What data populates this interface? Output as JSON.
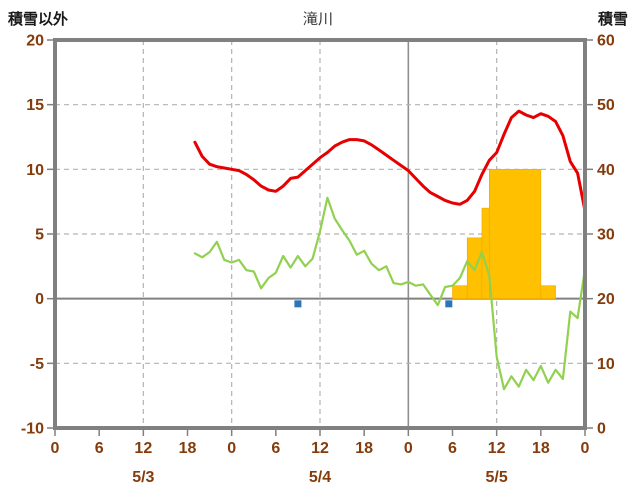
{
  "chart_data": {
    "type": "line",
    "title": "滝川",
    "left_axis_title": "積雪以外",
    "right_axis_title": "積雪",
    "left_axis": {
      "min": -10,
      "max": 20,
      "ticks": [
        20,
        15,
        10,
        5,
        0,
        -5,
        -10
      ]
    },
    "right_axis": {
      "min": 0,
      "max": 60,
      "ticks": [
        60,
        50,
        40,
        30,
        20,
        10,
        0
      ]
    },
    "x_axis": {
      "min": 0,
      "max": 72,
      "tick_interval": 6,
      "tick_labels": [
        "0",
        "6",
        "12",
        "18",
        "0",
        "6",
        "12",
        "18",
        "0",
        "6",
        "12",
        "18",
        "0"
      ],
      "date_labels": [
        {
          "label": "5/3",
          "hour": 12
        },
        {
          "label": "5/4",
          "hour": 36
        },
        {
          "label": "5/5",
          "hour": 60
        }
      ],
      "gridline_hours": [
        12,
        24,
        36,
        48,
        60
      ],
      "solid_gridline_hours": [
        48
      ]
    },
    "series": [
      {
        "name": "temperature-red-line",
        "color": "#e60000",
        "width": 3,
        "axis": "left",
        "points": [
          [
            19,
            12.1
          ],
          [
            20,
            11.0
          ],
          [
            21,
            10.4
          ],
          [
            22,
            10.2
          ],
          [
            23,
            10.1
          ],
          [
            24,
            10.0
          ],
          [
            25,
            9.9
          ],
          [
            26,
            9.6
          ],
          [
            27,
            9.2
          ],
          [
            28,
            8.7
          ],
          [
            29,
            8.4
          ],
          [
            30,
            8.3
          ],
          [
            31,
            8.7
          ],
          [
            32,
            9.3
          ],
          [
            33,
            9.4
          ],
          [
            34,
            9.9
          ],
          [
            35,
            10.4
          ],
          [
            36,
            10.9
          ],
          [
            37,
            11.3
          ],
          [
            38,
            11.8
          ],
          [
            39,
            12.1
          ],
          [
            40,
            12.3
          ],
          [
            41,
            12.3
          ],
          [
            42,
            12.2
          ],
          [
            43,
            11.9
          ],
          [
            44,
            11.5
          ],
          [
            45,
            11.1
          ],
          [
            46,
            10.7
          ],
          [
            47,
            10.3
          ],
          [
            48,
            9.9
          ],
          [
            49,
            9.3
          ],
          [
            50,
            8.7
          ],
          [
            51,
            8.2
          ],
          [
            52,
            7.9
          ],
          [
            53,
            7.6
          ],
          [
            54,
            7.4
          ],
          [
            55,
            7.3
          ],
          [
            56,
            7.6
          ],
          [
            57,
            8.3
          ],
          [
            58,
            9.6
          ],
          [
            59,
            10.7
          ],
          [
            60,
            11.3
          ],
          [
            61,
            12.7
          ],
          [
            62,
            14.0
          ],
          [
            63,
            14.5
          ],
          [
            64,
            14.2
          ],
          [
            65,
            14.0
          ],
          [
            66,
            14.3
          ],
          [
            67,
            14.1
          ],
          [
            68,
            13.7
          ],
          [
            69,
            12.6
          ],
          [
            70,
            10.6
          ],
          [
            71,
            9.7
          ],
          [
            72,
            6.8
          ]
        ]
      },
      {
        "name": "green-line",
        "color": "#92d050",
        "width": 2.2,
        "axis": "left",
        "points": [
          [
            19,
            3.5
          ],
          [
            20,
            3.2
          ],
          [
            21,
            3.6
          ],
          [
            22,
            4.4
          ],
          [
            23,
            3.0
          ],
          [
            24,
            2.8
          ],
          [
            25,
            3.0
          ],
          [
            26,
            2.2
          ],
          [
            27,
            2.1
          ],
          [
            28,
            0.8
          ],
          [
            29,
            1.6
          ],
          [
            30,
            2.0
          ],
          [
            31,
            3.3
          ],
          [
            32,
            2.4
          ],
          [
            33,
            3.3
          ],
          [
            34,
            2.5
          ],
          [
            35,
            3.1
          ],
          [
            36,
            5.2
          ],
          [
            37,
            7.8
          ],
          [
            38,
            6.2
          ],
          [
            39,
            5.3
          ],
          [
            40,
            4.5
          ],
          [
            41,
            3.4
          ],
          [
            42,
            3.7
          ],
          [
            43,
            2.7
          ],
          [
            44,
            2.2
          ],
          [
            45,
            2.5
          ],
          [
            46,
            1.2
          ],
          [
            47,
            1.1
          ],
          [
            48,
            1.3
          ],
          [
            49,
            1.0
          ],
          [
            50,
            1.1
          ],
          [
            51,
            0.3
          ],
          [
            52,
            -0.5
          ],
          [
            53,
            0.9
          ],
          [
            54,
            1.0
          ],
          [
            55,
            1.6
          ],
          [
            56,
            2.9
          ],
          [
            57,
            2.2
          ],
          [
            58,
            3.6
          ],
          [
            59,
            1.8
          ],
          [
            60,
            -4.5
          ],
          [
            61,
            -7.0
          ],
          [
            62,
            -6.0
          ],
          [
            63,
            -6.8
          ],
          [
            64,
            -5.5
          ],
          [
            65,
            -6.3
          ],
          [
            66,
            -5.2
          ],
          [
            67,
            -6.5
          ],
          [
            68,
            -5.5
          ],
          [
            69,
            -6.2
          ],
          [
            70,
            -1.0
          ],
          [
            71,
            -1.5
          ],
          [
            72,
            2.3
          ]
        ]
      },
      {
        "name": "snow-depth-purple-line",
        "color": "#7030a0",
        "width": 2.5,
        "axis": "left",
        "points": [
          [
            19,
            -10
          ],
          [
            72,
            -10
          ]
        ]
      }
    ],
    "bars": {
      "name": "orange-bars",
      "color": "#ffc000",
      "edge": "#f0a500",
      "axis": "left",
      "baseline": 0,
      "segments": [
        {
          "start": 54,
          "end": 56,
          "value": 1
        },
        {
          "start": 56,
          "end": 58,
          "value": 4.7
        },
        {
          "start": 58,
          "end": 59,
          "value": 7
        },
        {
          "start": 59,
          "end": 66,
          "value": 10
        },
        {
          "start": 66,
          "end": 68,
          "value": 1
        }
      ]
    },
    "markers": {
      "name": "blue-square-markers",
      "color": "#2e75b6",
      "size": 7,
      "axis": "left",
      "points": [
        [
          33,
          -0.4
        ],
        [
          53.5,
          -0.4
        ]
      ]
    },
    "colors": {
      "grid": "#b3b3b3",
      "solid_grid": "#909090",
      "frame": "#808080",
      "zero_line": "#808080",
      "tick_label": "#843c0c"
    }
  }
}
